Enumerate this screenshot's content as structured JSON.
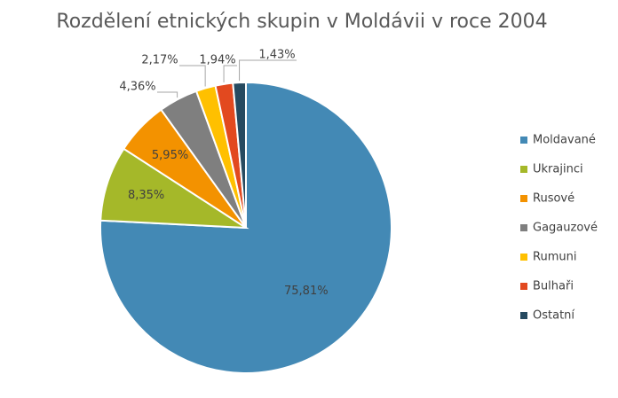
{
  "chart_data": {
    "type": "pie",
    "title": "Rozdělení etnických skupin v Moldávii v roce 2004",
    "categories": [
      "Moldavané",
      "Ukrajinci",
      "Rusové",
      "Gagauzové",
      "Rumuni",
      "Bulhaři",
      "Ostatní"
    ],
    "values": [
      75.81,
      8.35,
      5.95,
      4.36,
      2.17,
      1.94,
      1.43
    ],
    "value_labels": [
      "75,81%",
      "8,35%",
      "5,95%",
      "4,36%",
      "2,17%",
      "1,94%",
      "1,43%"
    ],
    "colors": [
      "#4389b5",
      "#a5b829",
      "#f39200",
      "#7f7f7f",
      "#ffc000",
      "#e2491f",
      "#264a60"
    ],
    "legend": "right"
  }
}
